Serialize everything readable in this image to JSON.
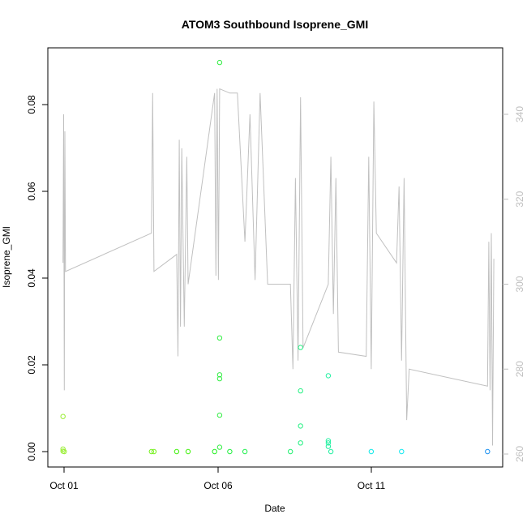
{
  "chart_data": {
    "type": "scatter",
    "title": "ATOM3 Southbound Isoprene_GMI",
    "xlabel": "Date",
    "ylabel": "Isoprene_GMI",
    "x_ticks": [
      "Oct 01",
      "Oct 06",
      "Oct 11"
    ],
    "xlim": [
      "2017-09-30T12:00",
      "2017-10-15T12:00"
    ],
    "ylim": [
      0,
      0.095
    ],
    "y_ticks": [
      "0.00",
      "0.02",
      "0.04",
      "0.06",
      "0.08"
    ],
    "y2lim": [
      257,
      348
    ],
    "y2_ticks": [
      "260",
      "280",
      "300",
      "320",
      "340"
    ],
    "grid": false,
    "series": [
      {
        "type": "scatter",
        "note_color": "gradient by time from yellow-green to blue",
        "points": [
          {
            "x": "2017-10-01T00:00",
            "y": 0.0081,
            "color": "#99ee33"
          },
          {
            "x": "2017-10-01T00:00",
            "y": 0.0006,
            "color": "#99ee33"
          },
          {
            "x": "2017-10-01T00:00",
            "y": 0.0001,
            "color": "#99ee33"
          },
          {
            "x": "2017-10-01T01:00",
            "y": 0.0,
            "color": "#99ee33"
          },
          {
            "x": "2017-10-03T22:00",
            "y": 0.0,
            "color": "#77f020"
          },
          {
            "x": "2017-10-04T00:00",
            "y": 0.0,
            "color": "#77f020"
          },
          {
            "x": "2017-10-04T18:00",
            "y": 0.0,
            "color": "#44f010"
          },
          {
            "x": "2017-10-05T03:00",
            "y": 0.0,
            "color": "#44f010"
          },
          {
            "x": "2017-10-06T00:00",
            "y": 0.0,
            "color": "#22f020"
          },
          {
            "x": "2017-10-06T04:00",
            "y": 0.0897,
            "color": "#33ee44"
          },
          {
            "x": "2017-10-06T04:00",
            "y": 0.0262,
            "color": "#33ee44"
          },
          {
            "x": "2017-10-06T04:00",
            "y": 0.0177,
            "color": "#33ee44"
          },
          {
            "x": "2017-10-06T04:00",
            "y": 0.0168,
            "color": "#33ee44"
          },
          {
            "x": "2017-10-06T04:00",
            "y": 0.0084,
            "color": "#33ee44"
          },
          {
            "x": "2017-10-06T04:00",
            "y": 0.001,
            "color": "#33ee44"
          },
          {
            "x": "2017-10-06T12:00",
            "y": 0.0,
            "color": "#22f040"
          },
          {
            "x": "2017-10-07T00:00",
            "y": 0.0,
            "color": "#22f050"
          },
          {
            "x": "2017-10-08T12:00",
            "y": 0.0,
            "color": "#20f070"
          },
          {
            "x": "2017-10-08T20:00",
            "y": 0.024,
            "color": "#20f080"
          },
          {
            "x": "2017-10-08T20:00",
            "y": 0.014,
            "color": "#20f080"
          },
          {
            "x": "2017-10-08T20:00",
            "y": 0.0059,
            "color": "#20f080"
          },
          {
            "x": "2017-10-08T20:00",
            "y": 0.002,
            "color": "#20f080"
          },
          {
            "x": "2017-10-09T18:00",
            "y": 0.0175,
            "color": "#20f0a0"
          },
          {
            "x": "2017-10-09T18:00",
            "y": 0.0025,
            "color": "#20f0a0"
          },
          {
            "x": "2017-10-09T18:00",
            "y": 0.002,
            "color": "#20f0a0"
          },
          {
            "x": "2017-10-09T18:00",
            "y": 0.0012,
            "color": "#20f0a0"
          },
          {
            "x": "2017-10-09T20:00",
            "y": 0.0,
            "color": "#20f0a0"
          },
          {
            "x": "2017-10-11T04:00",
            "y": 0.0,
            "color": "#10e8e8"
          },
          {
            "x": "2017-10-12T04:00",
            "y": 0.0,
            "color": "#10e8f0"
          },
          {
            "x": "2017-10-15T00:00",
            "y": 0.0,
            "color": "#1a90f0"
          }
        ]
      },
      {
        "type": "line",
        "axis": "right",
        "color": "#c0c0c0",
        "points": [
          {
            "x": "2017-10-01T00:00",
            "y": 305
          },
          {
            "x": "2017-10-01T00:30",
            "y": 340
          },
          {
            "x": "2017-10-01T01:00",
            "y": 275
          },
          {
            "x": "2017-10-01T01:30",
            "y": 336
          },
          {
            "x": "2017-10-01T02:00",
            "y": 303
          },
          {
            "x": "2017-10-03T22:00",
            "y": 312
          },
          {
            "x": "2017-10-03T23:00",
            "y": 345
          },
          {
            "x": "2017-10-04T00:00",
            "y": 303
          },
          {
            "x": "2017-10-04T18:00",
            "y": 307
          },
          {
            "x": "2017-10-04T19:00",
            "y": 283
          },
          {
            "x": "2017-10-04T20:00",
            "y": 334
          },
          {
            "x": "2017-10-04T21:00",
            "y": 290
          },
          {
            "x": "2017-10-04T22:00",
            "y": 332
          },
          {
            "x": "2017-10-05T00:00",
            "y": 290
          },
          {
            "x": "2017-10-05T02:00",
            "y": 330
          },
          {
            "x": "2017-10-05T03:00",
            "y": 300
          },
          {
            "x": "2017-10-06T00:00",
            "y": 345
          },
          {
            "x": "2017-10-06T01:00",
            "y": 302
          },
          {
            "x": "2017-10-06T02:00",
            "y": 346
          },
          {
            "x": "2017-10-06T03:00",
            "y": 301
          },
          {
            "x": "2017-10-06T04:00",
            "y": 346
          },
          {
            "x": "2017-10-06T12:00",
            "y": 345
          },
          {
            "x": "2017-10-06T18:00",
            "y": 345
          },
          {
            "x": "2017-10-07T00:00",
            "y": 310
          },
          {
            "x": "2017-10-07T04:00",
            "y": 340
          },
          {
            "x": "2017-10-07T08:00",
            "y": 301
          },
          {
            "x": "2017-10-07T12:00",
            "y": 345
          },
          {
            "x": "2017-10-07T18:00",
            "y": 300
          },
          {
            "x": "2017-10-08T12:00",
            "y": 300
          },
          {
            "x": "2017-10-08T14:00",
            "y": 280
          },
          {
            "x": "2017-10-08T16:00",
            "y": 325
          },
          {
            "x": "2017-10-08T18:00",
            "y": 282
          },
          {
            "x": "2017-10-08T20:00",
            "y": 344
          },
          {
            "x": "2017-10-08T22:00",
            "y": 285
          },
          {
            "x": "2017-10-09T18:00",
            "y": 300
          },
          {
            "x": "2017-10-09T20:00",
            "y": 330
          },
          {
            "x": "2017-10-09T22:00",
            "y": 293
          },
          {
            "x": "2017-10-10T00:00",
            "y": 325
          },
          {
            "x": "2017-10-10T02:00",
            "y": 284
          },
          {
            "x": "2017-10-11T00:00",
            "y": 283
          },
          {
            "x": "2017-10-11T02:00",
            "y": 330
          },
          {
            "x": "2017-10-11T04:00",
            "y": 280
          },
          {
            "x": "2017-10-11T06:00",
            "y": 343
          },
          {
            "x": "2017-10-11T08:00",
            "y": 312
          },
          {
            "x": "2017-10-12T00:00",
            "y": 305
          },
          {
            "x": "2017-10-12T02:00",
            "y": 323
          },
          {
            "x": "2017-10-12T04:00",
            "y": 282
          },
          {
            "x": "2017-10-12T06:00",
            "y": 325
          },
          {
            "x": "2017-10-12T08:00",
            "y": 268
          },
          {
            "x": "2017-10-12T10:00",
            "y": 280
          },
          {
            "x": "2017-10-15T00:00",
            "y": 276
          },
          {
            "x": "2017-10-15T01:00",
            "y": 310
          },
          {
            "x": "2017-10-15T02:00",
            "y": 275
          },
          {
            "x": "2017-10-15T03:00",
            "y": 312
          },
          {
            "x": "2017-10-15T04:00",
            "y": 262
          },
          {
            "x": "2017-10-15T05:00",
            "y": 306
          }
        ]
      }
    ]
  }
}
